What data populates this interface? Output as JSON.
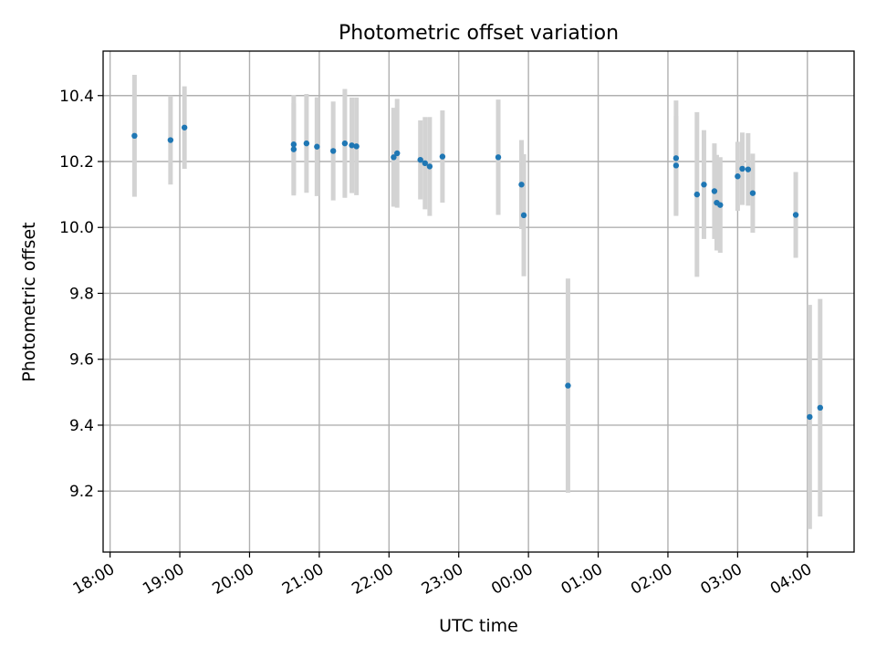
{
  "chart_data": {
    "type": "scatter",
    "title": "Photometric offset variation",
    "xlabel": "UTC time",
    "ylabel": "Photometric offset",
    "x_tick_labels": [
      "18:00",
      "19:00",
      "20:00",
      "21:00",
      "22:00",
      "23:00",
      "00:00",
      "01:00",
      "02:00",
      "03:00",
      "04:00"
    ],
    "x_tick_hours": [
      0,
      1,
      2,
      3,
      4,
      5,
      6,
      7,
      8,
      9,
      10
    ],
    "x_hours_since_start_note": "",
    "xlim_hours": [
      -0.1,
      10.67
    ],
    "y_ticks": [
      9.2,
      9.4,
      9.6,
      9.8,
      10.0,
      10.2,
      10.4
    ],
    "y_tick_labels": [
      "9.2",
      "9.4",
      "9.6",
      "9.8",
      "10.0",
      "10.2",
      "10.4"
    ],
    "ylim": [
      9.015,
      10.535
    ],
    "grid": true,
    "marker_color": "#1f77b4",
    "errorbar_color": "#d3d3d3",
    "points": [
      {
        "t": "18:21",
        "y": 10.278,
        "err": 0.185
      },
      {
        "t": "18:52",
        "y": 10.265,
        "err": 0.135
      },
      {
        "t": "19:04",
        "y": 10.303,
        "err": 0.125
      },
      {
        "t": "20:38",
        "y": 10.237,
        "err": 0.14
      },
      {
        "t": "20:38",
        "y": 10.252,
        "err": 0.15
      },
      {
        "t": "20:49",
        "y": 10.255,
        "err": 0.15
      },
      {
        "t": "20:58",
        "y": 10.245,
        "err": 0.15
      },
      {
        "t": "21:12",
        "y": 10.232,
        "err": 0.15
      },
      {
        "t": "21:22",
        "y": 10.255,
        "err": 0.165
      },
      {
        "t": "21:28",
        "y": 10.249,
        "err": 0.145
      },
      {
        "t": "21:32",
        "y": 10.246,
        "err": 0.148
      },
      {
        "t": "22:04",
        "y": 10.213,
        "err": 0.15
      },
      {
        "t": "22:07",
        "y": 10.225,
        "err": 0.165
      },
      {
        "t": "22:27",
        "y": 10.205,
        "err": 0.12
      },
      {
        "t": "22:31",
        "y": 10.195,
        "err": 0.14
      },
      {
        "t": "22:35",
        "y": 10.185,
        "err": 0.15
      },
      {
        "t": "22:46",
        "y": 10.215,
        "err": 0.14
      },
      {
        "t": "23:34",
        "y": 10.213,
        "err": 0.175
      },
      {
        "t": "23:54",
        "y": 10.13,
        "err": 0.135
      },
      {
        "t": "23:56",
        "y": 10.037,
        "err": 0.185
      },
      {
        "t": "00:34",
        "y": 9.52,
        "err": 0.325
      },
      {
        "t": "02:07",
        "y": 10.21,
        "err": 0.175
      },
      {
        "t": "02:07",
        "y": 10.188,
        "err": 0.15
      },
      {
        "t": "02:25",
        "y": 10.1,
        "err": 0.25
      },
      {
        "t": "02:31",
        "y": 10.13,
        "err": 0.165
      },
      {
        "t": "02:40",
        "y": 10.11,
        "err": 0.145
      },
      {
        "t": "02:42",
        "y": 10.075,
        "err": 0.145
      },
      {
        "t": "02:45",
        "y": 10.068,
        "err": 0.145
      },
      {
        "t": "03:00",
        "y": 10.155,
        "err": 0.105
      },
      {
        "t": "03:04",
        "y": 10.178,
        "err": 0.11
      },
      {
        "t": "03:09",
        "y": 10.176,
        "err": 0.11
      },
      {
        "t": "03:13",
        "y": 10.104,
        "err": 0.12
      },
      {
        "t": "03:50",
        "y": 10.038,
        "err": 0.13
      },
      {
        "t": "04:02",
        "y": 9.425,
        "err": 0.34
      },
      {
        "t": "04:11",
        "y": 9.453,
        "err": 0.33
      }
    ]
  }
}
